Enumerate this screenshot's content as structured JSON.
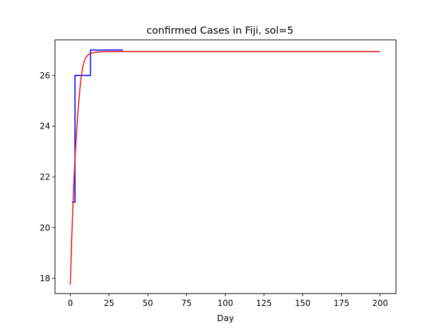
{
  "chart_data": {
    "type": "line",
    "title": "confirmed Cases in Fiji, sol=5",
    "xlabel": "Day",
    "ylabel": "",
    "xlim": [
      -9.9,
      210.2
    ],
    "ylim": [
      17.4,
      27.4
    ],
    "xticks": [
      0,
      25,
      50,
      75,
      100,
      125,
      150,
      175,
      200
    ],
    "yticks": [
      18,
      20,
      22,
      24,
      26
    ],
    "grid": false,
    "legend": "none",
    "series": [
      {
        "kind": "step",
        "color": "#0000ff",
        "points": [
          [
            1,
            21
          ],
          [
            3,
            21
          ],
          [
            3,
            26
          ],
          [
            4,
            26
          ],
          [
            13,
            26
          ],
          [
            13,
            27
          ],
          [
            34,
            27
          ]
        ]
      },
      {
        "kind": "curve",
        "color": "#e41a1a",
        "points": [
          [
            0,
            17.75
          ],
          [
            0.5,
            18.79
          ],
          [
            1,
            19.73
          ],
          [
            1.5,
            20.58
          ],
          [
            2,
            21.35
          ],
          [
            2.5,
            22.05
          ],
          [
            3,
            22.68
          ],
          [
            3.5,
            23.25
          ],
          [
            4,
            23.76
          ],
          [
            5,
            24.64
          ],
          [
            6,
            25.36
          ],
          [
            7,
            25.93
          ],
          [
            8,
            26.32
          ],
          [
            9,
            26.56
          ],
          [
            10,
            26.71
          ],
          [
            12,
            26.84
          ],
          [
            15,
            26.9
          ],
          [
            20,
            26.93
          ],
          [
            30,
            26.94
          ],
          [
            50,
            26.94
          ],
          [
            100,
            26.94
          ],
          [
            150,
            26.94
          ],
          [
            200,
            26.94
          ]
        ]
      }
    ]
  }
}
